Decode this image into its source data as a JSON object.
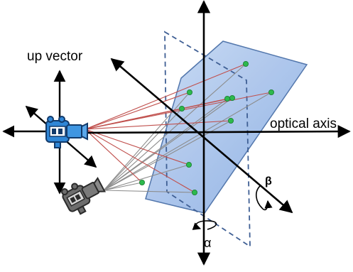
{
  "labels": {
    "up_vector": "up vector",
    "optical_axis": "optical axis",
    "beta": "β",
    "alpha": "α"
  },
  "colors": {
    "plane_fill": "#a9c4ee",
    "plane_stroke": "#4a70a8",
    "dashed_plane": "#3f5f94",
    "red_rays": "#c0504d",
    "gray_rays": "#8c8c8c",
    "points": "#2db94d",
    "camera_blue": "#2f86d6",
    "camera_gray": "#6d6d6d"
  },
  "icons": [
    "video-camera-icon",
    "video-camera-icon"
  ],
  "feature_point_count": 10
}
